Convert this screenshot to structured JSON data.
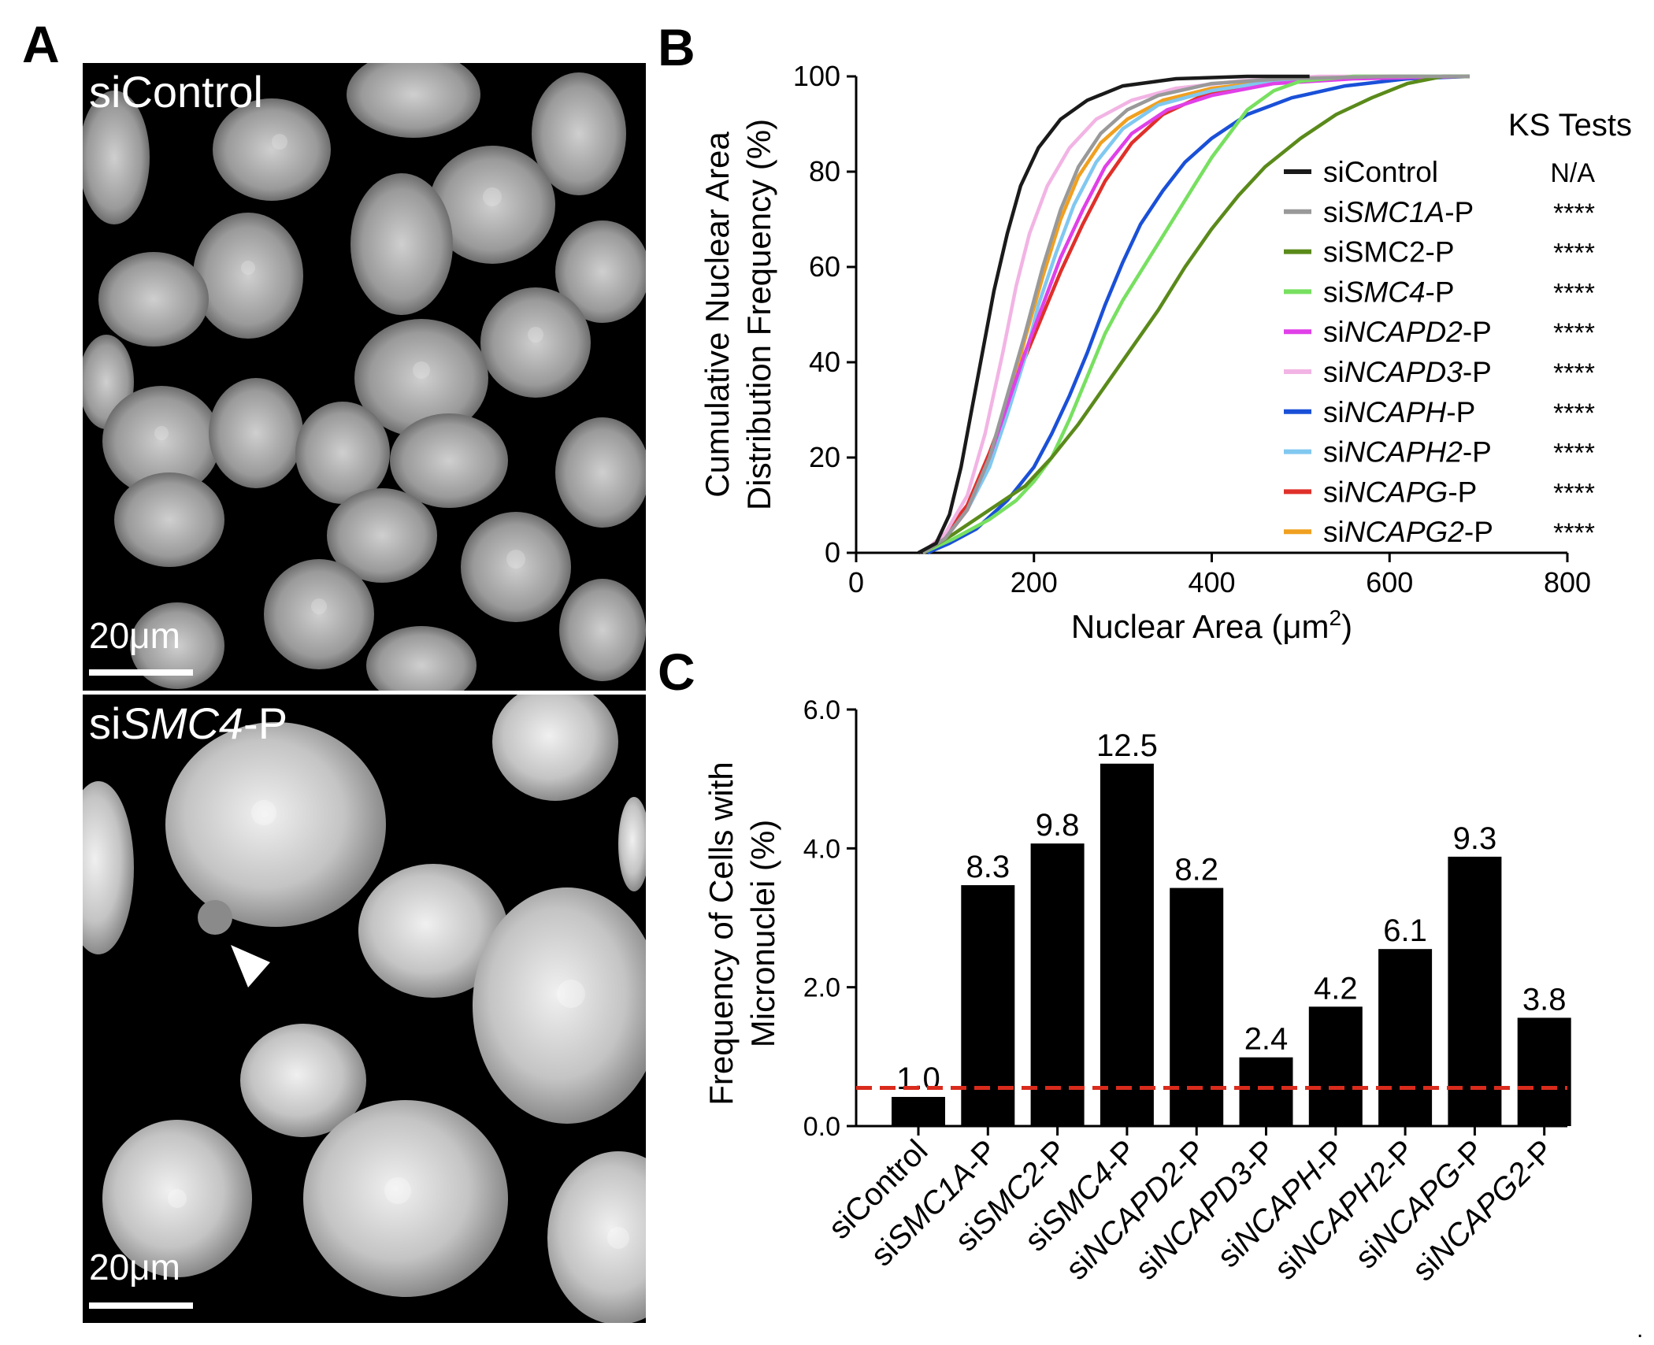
{
  "panel_letters": {
    "a": "A",
    "b": "B",
    "c": "C"
  },
  "panel_a": {
    "top_label": "siControl",
    "bottom_label_prefix": "si",
    "bottom_label_gene": "SMC4",
    "bottom_label_suffix": "-P",
    "scale_bar_label": "20μm",
    "scale_bar_label_bottom": "20μm"
  },
  "trailing_mark": ".",
  "chart_data": [
    {
      "type": "line",
      "panel": "B",
      "xlabel_main": "Nuclear Area (μm",
      "xlabel_sup": "2",
      "xlabel_end": ")",
      "ylabel_line1": "Cumulative Nuclear Area",
      "ylabel_line2": "Distribution Frequency (%)",
      "xlim": [
        0,
        800
      ],
      "ylim": [
        0,
        100
      ],
      "x_ticks": [
        0,
        200,
        400,
        600,
        800
      ],
      "y_ticks": [
        0,
        20,
        40,
        60,
        80,
        100
      ],
      "legend_title": "KS Tests",
      "legend_position": "right",
      "series": [
        {
          "name": "siControl",
          "prefix": "siControl",
          "gene": "",
          "suffix": "",
          "ks": "N/A",
          "color": "#1a1a1a",
          "points": [
            [
              70,
              0
            ],
            [
              90,
              2
            ],
            [
              105,
              8
            ],
            [
              118,
              18
            ],
            [
              130,
              30
            ],
            [
              142,
              42
            ],
            [
              155,
              55
            ],
            [
              170,
              67
            ],
            [
              185,
              77
            ],
            [
              205,
              85
            ],
            [
              230,
              91
            ],
            [
              260,
              95
            ],
            [
              300,
              98
            ],
            [
              360,
              99.5
            ],
            [
              440,
              100
            ],
            [
              510,
              100
            ]
          ]
        },
        {
          "name": "siSMC1A-P",
          "prefix": "si",
          "gene": "SMC1A",
          "suffix": "-P",
          "ks": "****",
          "color": "#999999",
          "points": [
            [
              75,
              0
            ],
            [
              100,
              3
            ],
            [
              125,
              9
            ],
            [
              150,
              20
            ],
            [
              170,
              33
            ],
            [
              190,
              46
            ],
            [
              210,
              60
            ],
            [
              230,
              72
            ],
            [
              250,
              81
            ],
            [
              275,
              88
            ],
            [
              305,
              93
            ],
            [
              340,
              96
            ],
            [
              400,
              98.5
            ],
            [
              480,
              99.5
            ],
            [
              600,
              100
            ],
            [
              690,
              100
            ]
          ]
        },
        {
          "name": "siSMC2-P",
          "prefix": "siSMC2-P",
          "gene": "",
          "suffix": "",
          "ks": "****",
          "color": "#5a8a1a",
          "points": [
            [
              75,
              0
            ],
            [
              110,
              4
            ],
            [
              150,
              9
            ],
            [
              190,
              14
            ],
            [
              220,
              20
            ],
            [
              250,
              27
            ],
            [
              280,
              35
            ],
            [
              310,
              43
            ],
            [
              340,
              51
            ],
            [
              370,
              60
            ],
            [
              400,
              68
            ],
            [
              430,
              75
            ],
            [
              460,
              81
            ],
            [
              500,
              87
            ],
            [
              540,
              92
            ],
            [
              580,
              95.5
            ],
            [
              620,
              98.5
            ],
            [
              660,
              100
            ],
            [
              690,
              100
            ]
          ]
        },
        {
          "name": "siSMC4-P",
          "prefix": "si",
          "gene": "SMC4",
          "suffix": "-P",
          "ks": "****",
          "color": "#77e060",
          "points": [
            [
              75,
              0
            ],
            [
              110,
              3
            ],
            [
              150,
              7
            ],
            [
              180,
              11
            ],
            [
              200,
              15
            ],
            [
              220,
              20
            ],
            [
              240,
              28
            ],
            [
              260,
              37
            ],
            [
              280,
              46
            ],
            [
              300,
              53
            ],
            [
              320,
              59
            ],
            [
              340,
              65
            ],
            [
              360,
              71
            ],
            [
              380,
              77
            ],
            [
              400,
              83
            ],
            [
              420,
              88
            ],
            [
              440,
              93
            ],
            [
              470,
              97
            ],
            [
              500,
              99
            ],
            [
              560,
              100
            ],
            [
              690,
              100
            ]
          ]
        },
        {
          "name": "siNCAPD2-P",
          "prefix": "si",
          "gene": "NCAPD2",
          "suffix": "-P",
          "ks": "****",
          "color": "#e040e8",
          "points": [
            [
              75,
              0
            ],
            [
              100,
              3
            ],
            [
              125,
              9
            ],
            [
              150,
              20
            ],
            [
              170,
              31
            ],
            [
              190,
              42
            ],
            [
              210,
              52
            ],
            [
              230,
              62
            ],
            [
              255,
              72
            ],
            [
              280,
              81
            ],
            [
              310,
              88
            ],
            [
              350,
              93
            ],
            [
              400,
              96
            ],
            [
              470,
              98.5
            ],
            [
              560,
              99.5
            ],
            [
              690,
              100
            ]
          ]
        },
        {
          "name": "siNCAPD3-P",
          "prefix": "si",
          "gene": "NCAPD3",
          "suffix": "-P",
          "ks": "****",
          "color": "#f2b4e4",
          "points": [
            [
              75,
              0
            ],
            [
              100,
              4
            ],
            [
              125,
              12
            ],
            [
              145,
              25
            ],
            [
              165,
              42
            ],
            [
              180,
              56
            ],
            [
              195,
              67
            ],
            [
              215,
              77
            ],
            [
              240,
              85
            ],
            [
              270,
              91
            ],
            [
              310,
              95
            ],
            [
              360,
              97.5
            ],
            [
              430,
              99
            ],
            [
              520,
              100
            ],
            [
              600,
              100
            ]
          ]
        },
        {
          "name": "siNCAPH-P",
          "prefix": "si",
          "gene": "NCAPH",
          "suffix": "-P",
          "ks": "****",
          "color": "#1a50d8",
          "points": [
            [
              80,
              0
            ],
            [
              105,
              2
            ],
            [
              135,
              5
            ],
            [
              170,
              11
            ],
            [
              200,
              18
            ],
            [
              220,
              25
            ],
            [
              240,
              33
            ],
            [
              260,
              42
            ],
            [
              280,
              52
            ],
            [
              300,
              61
            ],
            [
              320,
              69
            ],
            [
              345,
              76
            ],
            [
              370,
              82
            ],
            [
              400,
              87
            ],
            [
              440,
              92
            ],
            [
              490,
              95.5
            ],
            [
              550,
              98
            ],
            [
              620,
              99.5
            ],
            [
              690,
              100
            ]
          ]
        },
        {
          "name": "siNCAPH2-P",
          "prefix": "si",
          "gene": "NCAPH2",
          "suffix": "-P",
          "ks": "****",
          "color": "#80c8f0",
          "points": [
            [
              75,
              0
            ],
            [
              100,
              3
            ],
            [
              125,
              9
            ],
            [
              150,
              18
            ],
            [
              170,
              29
            ],
            [
              190,
              41
            ],
            [
              205,
              52
            ],
            [
              225,
              63
            ],
            [
              245,
              73
            ],
            [
              270,
              82
            ],
            [
              300,
              89
            ],
            [
              340,
              94
            ],
            [
              400,
              97
            ],
            [
              470,
              99
            ],
            [
              560,
              100
            ],
            [
              690,
              100
            ]
          ]
        },
        {
          "name": "siNCAPG-P",
          "prefix": "si",
          "gene": "NCAPG",
          "suffix": "-P",
          "ks": "****",
          "color": "#e0302a",
          "points": [
            [
              75,
              0
            ],
            [
              100,
              4
            ],
            [
              125,
              10
            ],
            [
              150,
              21
            ],
            [
              170,
              31
            ],
            [
              190,
              41
            ],
            [
              210,
              50
            ],
            [
              230,
              59
            ],
            [
              255,
              69
            ],
            [
              280,
              78
            ],
            [
              310,
              86
            ],
            [
              345,
              92
            ],
            [
              390,
              96
            ],
            [
              450,
              98.5
            ],
            [
              530,
              99.5
            ],
            [
              610,
              100
            ]
          ]
        },
        {
          "name": "siNCAPG2-P",
          "prefix": "si",
          "gene": "NCAPG2",
          "suffix": "-P",
          "ks": "****",
          "color": "#f0a020",
          "points": [
            [
              75,
              0
            ],
            [
              100,
              3
            ],
            [
              125,
              9
            ],
            [
              150,
              19
            ],
            [
              170,
              31
            ],
            [
              190,
              45
            ],
            [
              210,
              58
            ],
            [
              230,
              70
            ],
            [
              250,
              79
            ],
            [
              275,
              86
            ],
            [
              305,
              91
            ],
            [
              345,
              95
            ],
            [
              400,
              97.5
            ],
            [
              470,
              99
            ],
            [
              560,
              100
            ],
            [
              640,
              100
            ]
          ]
        }
      ]
    },
    {
      "type": "bar",
      "panel": "C",
      "ylabel_line1": "Frequency of Cells with",
      "ylabel_line2": "Micronuclei (%)",
      "ylim": [
        0,
        6
      ],
      "y_ticks": [
        "0.0",
        "2.0",
        "4.0",
        "6.0"
      ],
      "reference_line": 0.55,
      "reference_color": "#d92b1c",
      "categories": [
        {
          "prefix": "siControl",
          "gene": "",
          "suffix": ""
        },
        {
          "prefix": "si",
          "gene": "SMC1A",
          "suffix": "-P"
        },
        {
          "prefix": "si",
          "gene": "SMC2",
          "suffix": "-P"
        },
        {
          "prefix": "si",
          "gene": "SMC4",
          "suffix": "-P"
        },
        {
          "prefix": "si",
          "gene": "NCAPD2",
          "suffix": "-P"
        },
        {
          "prefix": "si",
          "gene": "NCAPD3",
          "suffix": "-P"
        },
        {
          "prefix": "si",
          "gene": "NCAPH",
          "suffix": "-P"
        },
        {
          "prefix": "si",
          "gene": "NCAPH2",
          "suffix": "-P"
        },
        {
          "prefix": "si",
          "gene": "NCAPG",
          "suffix": "-P"
        },
        {
          "prefix": "si",
          "gene": "NCAPG2",
          "suffix": "-P"
        }
      ],
      "values": [
        0.42,
        3.47,
        4.07,
        5.22,
        3.43,
        0.99,
        1.72,
        2.55,
        3.88,
        1.56
      ],
      "bar_labels": [
        "1.0",
        "8.3",
        "9.8",
        "12.5",
        "8.2",
        "2.4",
        "4.2",
        "6.1",
        "9.3",
        "3.8"
      ],
      "bar_color": "#000000"
    }
  ]
}
